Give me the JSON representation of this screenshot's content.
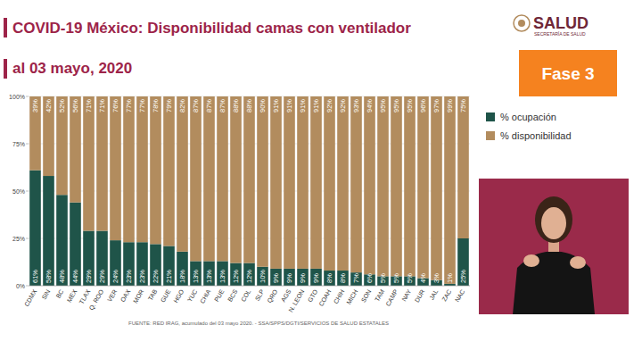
{
  "chart_data": {
    "type": "bar",
    "stacked": true,
    "title": "COVID-19 México: Disponibilidad camas con ventilador",
    "subtitle": "al 03 mayo, 2020",
    "source": "FUENTE: RED IRAG, acumulado del 03 mayo 2020. - SSA/SPPS/DGTI/SERVICIOS DE SALUD ESTATALES",
    "annotations": [
      "Fase 3",
      "SALUD",
      "SECRETARÍA DE SALUD"
    ],
    "categories": [
      "CDMX",
      "SIN",
      "BC",
      "MEX",
      "TLAX",
      "Q. ROO",
      "VER",
      "OAX",
      "MOR",
      "TAB",
      "GUE",
      "HGO",
      "YUC",
      "CHIA",
      "PUE",
      "BCS",
      "COL",
      "SLP",
      "QRO",
      "AGS",
      "N. LEON",
      "GTO",
      "COAH",
      "CHIH",
      "MICH",
      "SON",
      "TAM",
      "CAMP",
      "NAY",
      "DUR",
      "JAL",
      "ZAC",
      "NAC"
    ],
    "series": [
      {
        "name": "% ocupación",
        "color": "#1f5449",
        "values": [
          61,
          58,
          48,
          44,
          29,
          29,
          24,
          23,
          23,
          22,
          21,
          18,
          13,
          13,
          13,
          12,
          12,
          10,
          9,
          9,
          9,
          9,
          8,
          8,
          7,
          6,
          5,
          5,
          5,
          4,
          3,
          1,
          25
        ],
        "value_labels": [
          "61%",
          "58%",
          "48%",
          "44%",
          "29%",
          "29%",
          "24%",
          "23%",
          "23%",
          "22%",
          "21%",
          "18%",
          "13%",
          "13%",
          "13%",
          "12%",
          "12%",
          "10%",
          "9%",
          "9%",
          "9%",
          "9%",
          "8%",
          "8%",
          "7%",
          "6%",
          "5%",
          "5%",
          "5%",
          "4%",
          "3%",
          "1%",
          "25%"
        ]
      },
      {
        "name": "% disponibilidad",
        "color": "#b28c5e",
        "values": [
          39,
          42,
          52,
          56,
          71,
          71,
          76,
          77,
          77,
          78,
          79,
          82,
          87,
          87,
          87,
          88,
          88,
          90,
          91,
          91,
          91,
          91,
          92,
          92,
          93,
          94,
          95,
          95,
          95,
          96,
          97,
          99,
          75
        ],
        "value_labels": [
          "39%",
          "42%",
          "52%",
          "56%",
          "71%",
          "71%",
          "76%",
          "77%",
          "77%",
          "78%",
          "79%",
          "82%",
          "87%",
          "87%",
          "87%",
          "88%",
          "88%",
          "90%",
          "91%",
          "91%",
          "91%",
          "91%",
          "92%",
          "92%",
          "93%",
          "94%",
          "95%",
          "95%",
          "95%",
          "96%",
          "97%",
          "99%",
          "75%"
        ]
      }
    ],
    "ylim": [
      0,
      100
    ],
    "yticks": [
      {
        "value": 0,
        "label": "0%"
      },
      {
        "value": 25,
        "label": "25%"
      },
      {
        "value": 50,
        "label": "50%"
      },
      {
        "value": 75,
        "label": "75%"
      },
      {
        "value": 100,
        "label": "100%"
      }
    ],
    "grid": true,
    "legend": "right",
    "data_labels": true
  }
}
